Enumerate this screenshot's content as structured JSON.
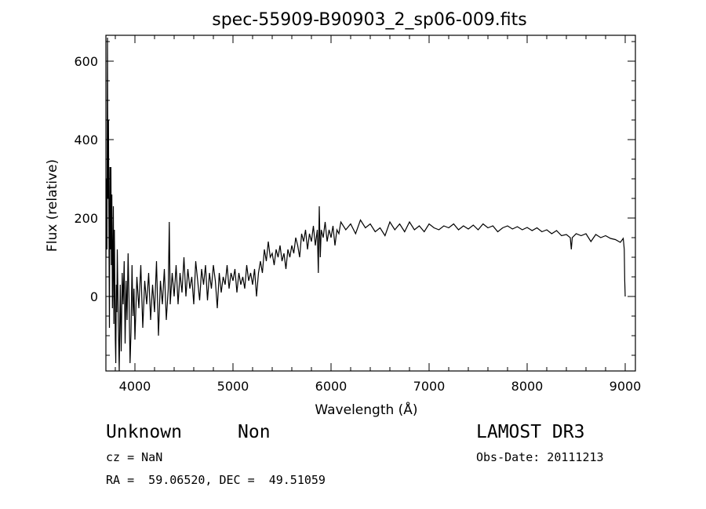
{
  "chart_data": {
    "type": "line",
    "title": "spec-55909-B90903_2_sp06-009.fits",
    "xlabel": "Wavelength (Å)",
    "ylabel": "Flux (relative)",
    "xlim": [
      3704,
      9104
    ],
    "ylim": [
      -190,
      666
    ],
    "xticks": [
      4000,
      5000,
      6000,
      7000,
      8000,
      9000
    ],
    "yticks": [
      0,
      200,
      400,
      600
    ],
    "grid": false,
    "series": [
      {
        "name": "flux",
        "points": [
          [
            3705,
            100
          ],
          [
            3710,
            300
          ],
          [
            3715,
            120
          ],
          [
            3720,
            660
          ],
          [
            3725,
            250
          ],
          [
            3730,
            450
          ],
          [
            3735,
            150
          ],
          [
            3740,
            -80
          ],
          [
            3745,
            330
          ],
          [
            3750,
            120
          ],
          [
            3755,
            330
          ],
          [
            3760,
            80
          ],
          [
            3765,
            260
          ],
          [
            3770,
            -30
          ],
          [
            3775,
            100
          ],
          [
            3780,
            230
          ],
          [
            3785,
            -70
          ],
          [
            3790,
            170
          ],
          [
            3800,
            -110
          ],
          [
            3805,
            -170
          ],
          [
            3810,
            30
          ],
          [
            3815,
            -40
          ],
          [
            3820,
            120
          ],
          [
            3830,
            -60
          ],
          [
            3840,
            -190
          ],
          [
            3850,
            30
          ],
          [
            3860,
            -140
          ],
          [
            3870,
            60
          ],
          [
            3880,
            -20
          ],
          [
            3890,
            90
          ],
          [
            3900,
            -120
          ],
          [
            3910,
            40
          ],
          [
            3920,
            -60
          ],
          [
            3930,
            110
          ],
          [
            3940,
            -10
          ],
          [
            3950,
            -170
          ],
          [
            3960,
            -90
          ],
          [
            3970,
            80
          ],
          [
            3980,
            -50
          ],
          [
            3990,
            20
          ],
          [
            4000,
            -110
          ],
          [
            4020,
            50
          ],
          [
            4040,
            -30
          ],
          [
            4060,
            80
          ],
          [
            4080,
            -80
          ],
          [
            4100,
            40
          ],
          [
            4120,
            -20
          ],
          [
            4140,
            60
          ],
          [
            4160,
            -60
          ],
          [
            4180,
            30
          ],
          [
            4200,
            -40
          ],
          [
            4220,
            90
          ],
          [
            4240,
            -100
          ],
          [
            4260,
            40
          ],
          [
            4280,
            -20
          ],
          [
            4300,
            70
          ],
          [
            4320,
            -60
          ],
          [
            4340,
            20
          ],
          [
            4350,
            190
          ],
          [
            4360,
            -20
          ],
          [
            4380,
            60
          ],
          [
            4400,
            0
          ],
          [
            4420,
            80
          ],
          [
            4440,
            -20
          ],
          [
            4460,
            60
          ],
          [
            4480,
            10
          ],
          [
            4500,
            100
          ],
          [
            4520,
            0
          ],
          [
            4540,
            70
          ],
          [
            4560,
            20
          ],
          [
            4580,
            50
          ],
          [
            4600,
            -20
          ],
          [
            4620,
            90
          ],
          [
            4640,
            40
          ],
          [
            4660,
            -10
          ],
          [
            4680,
            70
          ],
          [
            4700,
            30
          ],
          [
            4720,
            80
          ],
          [
            4740,
            -10
          ],
          [
            4760,
            60
          ],
          [
            4780,
            20
          ],
          [
            4800,
            80
          ],
          [
            4820,
            40
          ],
          [
            4840,
            -30
          ],
          [
            4860,
            60
          ],
          [
            4880,
            10
          ],
          [
            4900,
            50
          ],
          [
            4920,
            30
          ],
          [
            4940,
            80
          ],
          [
            4960,
            20
          ],
          [
            4980,
            60
          ],
          [
            5000,
            40
          ],
          [
            5020,
            70
          ],
          [
            5040,
            10
          ],
          [
            5060,
            60
          ],
          [
            5080,
            30
          ],
          [
            5100,
            50
          ],
          [
            5120,
            20
          ],
          [
            5140,
            80
          ],
          [
            5160,
            40
          ],
          [
            5180,
            60
          ],
          [
            5200,
            30
          ],
          [
            5220,
            70
          ],
          [
            5240,
            0
          ],
          [
            5260,
            60
          ],
          [
            5280,
            90
          ],
          [
            5300,
            60
          ],
          [
            5320,
            120
          ],
          [
            5340,
            90
          ],
          [
            5360,
            140
          ],
          [
            5380,
            100
          ],
          [
            5400,
            110
          ],
          [
            5420,
            80
          ],
          [
            5440,
            120
          ],
          [
            5460,
            100
          ],
          [
            5480,
            130
          ],
          [
            5500,
            90
          ],
          [
            5520,
            110
          ],
          [
            5540,
            70
          ],
          [
            5560,
            120
          ],
          [
            5580,
            100
          ],
          [
            5600,
            130
          ],
          [
            5620,
            110
          ],
          [
            5640,
            150
          ],
          [
            5660,
            130
          ],
          [
            5680,
            100
          ],
          [
            5700,
            160
          ],
          [
            5720,
            140
          ],
          [
            5740,
            170
          ],
          [
            5760,
            120
          ],
          [
            5780,
            160
          ],
          [
            5800,
            140
          ],
          [
            5820,
            180
          ],
          [
            5840,
            130
          ],
          [
            5860,
            170
          ],
          [
            5870,
            60
          ],
          [
            5880,
            230
          ],
          [
            5890,
            100
          ],
          [
            5900,
            170
          ],
          [
            5920,
            150
          ],
          [
            5940,
            190
          ],
          [
            5960,
            140
          ],
          [
            5980,
            170
          ],
          [
            6000,
            150
          ],
          [
            6020,
            180
          ],
          [
            6040,
            130
          ],
          [
            6060,
            170
          ],
          [
            6080,
            160
          ],
          [
            6100,
            190
          ],
          [
            6150,
            170
          ],
          [
            6200,
            185
          ],
          [
            6250,
            160
          ],
          [
            6300,
            195
          ],
          [
            6350,
            175
          ],
          [
            6400,
            185
          ],
          [
            6450,
            165
          ],
          [
            6500,
            175
          ],
          [
            6550,
            155
          ],
          [
            6600,
            190
          ],
          [
            6650,
            170
          ],
          [
            6700,
            185
          ],
          [
            6750,
            165
          ],
          [
            6800,
            190
          ],
          [
            6850,
            170
          ],
          [
            6900,
            180
          ],
          [
            6950,
            165
          ],
          [
            7000,
            185
          ],
          [
            7050,
            175
          ],
          [
            7100,
            170
          ],
          [
            7150,
            180
          ],
          [
            7200,
            175
          ],
          [
            7250,
            185
          ],
          [
            7300,
            170
          ],
          [
            7350,
            180
          ],
          [
            7400,
            172
          ],
          [
            7450,
            182
          ],
          [
            7500,
            170
          ],
          [
            7550,
            185
          ],
          [
            7600,
            175
          ],
          [
            7650,
            180
          ],
          [
            7700,
            165
          ],
          [
            7750,
            175
          ],
          [
            7800,
            180
          ],
          [
            7850,
            172
          ],
          [
            7900,
            178
          ],
          [
            7950,
            170
          ],
          [
            8000,
            176
          ],
          [
            8050,
            168
          ],
          [
            8100,
            175
          ],
          [
            8150,
            165
          ],
          [
            8200,
            170
          ],
          [
            8250,
            160
          ],
          [
            8300,
            168
          ],
          [
            8350,
            155
          ],
          [
            8400,
            158
          ],
          [
            8440,
            150
          ],
          [
            8450,
            120
          ],
          [
            8460,
            150
          ],
          [
            8500,
            160
          ],
          [
            8550,
            155
          ],
          [
            8600,
            160
          ],
          [
            8650,
            140
          ],
          [
            8700,
            158
          ],
          [
            8750,
            150
          ],
          [
            8800,
            155
          ],
          [
            8850,
            148
          ],
          [
            8900,
            145
          ],
          [
            8950,
            138
          ],
          [
            8980,
            148
          ],
          [
            8990,
            120
          ],
          [
            8995,
            40
          ],
          [
            9000,
            0
          ]
        ]
      }
    ]
  },
  "info": {
    "object_class": "Unknown",
    "subclass": "Non",
    "survey": "LAMOST DR3",
    "cz": "cz = NaN",
    "obs_date": "Obs-Date: 20111213",
    "coords": "RA =  59.06520, DEC =  49.51059"
  }
}
